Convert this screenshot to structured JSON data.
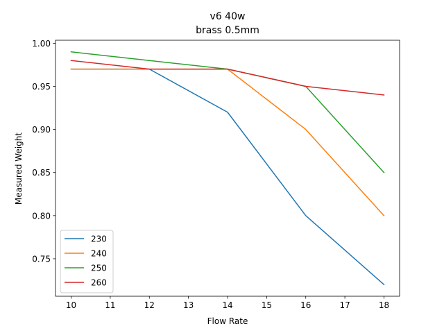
{
  "chart_data": {
    "type": "line",
    "title": "v6 40w",
    "subtitle": "brass 0.5mm",
    "xlabel": "Flow Rate",
    "ylabel": "Measured Weight",
    "x": [
      10,
      12,
      14,
      16,
      18
    ],
    "xlim": [
      9.6,
      18.4
    ],
    "ylim": [
      0.7065,
      1.0035
    ],
    "xticks": [
      10,
      11,
      12,
      13,
      14,
      15,
      16,
      17,
      18
    ],
    "yticks": [
      0.75,
      0.8,
      0.85,
      0.9,
      0.95,
      1.0
    ],
    "series": [
      {
        "name": "230",
        "color": "#1f77b4",
        "values": [
          0.97,
          0.97,
          0.92,
          0.8,
          0.72
        ]
      },
      {
        "name": "240",
        "color": "#ff7f0e",
        "values": [
          0.97,
          0.97,
          0.97,
          0.9,
          0.8
        ]
      },
      {
        "name": "250",
        "color": "#2ca02c",
        "values": [
          0.99,
          0.98,
          0.97,
          0.95,
          0.85
        ]
      },
      {
        "name": "260",
        "color": "#d62728",
        "values": [
          0.98,
          0.97,
          0.97,
          0.95,
          0.94
        ]
      }
    ],
    "grid": false,
    "legend_position": "lower-left"
  }
}
